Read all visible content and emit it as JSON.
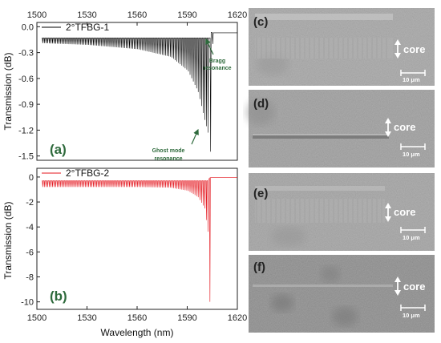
{
  "chart_data": [
    {
      "type": "line",
      "panel": "(a)",
      "x_axis": {
        "label": "",
        "ticks": [
          1500,
          1530,
          1560,
          1590,
          1620
        ],
        "range": [
          1500,
          1620
        ],
        "position": "top"
      },
      "y_axis": {
        "label": "Transmission (dB)",
        "ticks": [
          -0.0,
          -0.3,
          -0.6,
          -0.9,
          -1.2,
          -1.5
        ],
        "tick_labels": [
          "0.0",
          "-0.3",
          "-0.6",
          "-0.9",
          "-1.2",
          "-1.5"
        ],
        "range": [
          -1.55,
          0.05
        ]
      },
      "series": [
        {
          "name": "2°TFBG-1",
          "color": "#000000",
          "baseline": -0.13,
          "oscillation_start_nm": 1503,
          "resonance_spacing_nm": 0.98,
          "depth_points": [
            [
              1503,
              0.06
            ],
            [
              1530,
              0.08
            ],
            [
              1560,
              0.13
            ],
            [
              1580,
              0.22
            ],
            [
              1590,
              0.38
            ],
            [
              1596,
              0.62
            ],
            [
              1600,
              0.95
            ],
            [
              1602,
              1.1
            ]
          ],
          "ghost_mode_dip": {
            "x": 1604.0,
            "y": -1.45
          },
          "bragg_resonance": {
            "x": 1605.3,
            "y": -0.2
          },
          "flat_level_after": -0.07,
          "x_end": 1620
        }
      ],
      "legend": {
        "entries": [
          "2°TFBG-1"
        ],
        "placement": "top-left"
      },
      "annotations": [
        {
          "text": "Bragg resonance",
          "lines": [
            "Bragg",
            "resonance"
          ],
          "target": [
            1606.2,
            -0.1
          ]
        },
        {
          "text": "Ghost mode resonance",
          "lines": [
            "Ghost mode",
            "resonance"
          ],
          "target": [
            1603.2,
            -1.26
          ]
        }
      ]
    },
    {
      "type": "line",
      "panel": "(b)",
      "x_axis": {
        "label": "Wavelength (nm)",
        "ticks": [
          1500,
          1530,
          1560,
          1590,
          1620
        ],
        "range": [
          1500,
          1620
        ],
        "position": "bottom"
      },
      "y_axis": {
        "label": "Transmission (dB)",
        "ticks": [
          0,
          -2,
          -4,
          -6,
          -8,
          -10
        ],
        "tick_labels": [
          "0",
          "-2",
          "-4",
          "-6",
          "-8",
          "-10"
        ],
        "range": [
          -10.6,
          0.7
        ]
      },
      "series": [
        {
          "name": "2°TFBG-2",
          "color": "#e4161e",
          "baseline": -0.3,
          "oscillation_start_nm": 1503,
          "resonance_spacing_nm": 0.98,
          "depth_points": [
            [
              1503,
              0.5
            ],
            [
              1560,
              0.5
            ],
            [
              1580,
              0.55
            ],
            [
              1590,
              0.8
            ],
            [
              1596,
              1.3
            ],
            [
              1600,
              2.2
            ],
            [
              1602,
              4.1
            ]
          ],
          "bragg_resonance": {
            "x": 1603.6,
            "y": -10.0
          },
          "flat_level_after": -0.05,
          "x_end": 1620
        }
      ],
      "legend": {
        "entries": [
          "2°TFBG-2"
        ],
        "placement": "top-left"
      }
    }
  ],
  "micrographs": [
    {
      "id": "c",
      "label": "(c)",
      "core_label": "core",
      "scale_label": "10 μm"
    },
    {
      "id": "d",
      "label": "(d)",
      "core_label": "core",
      "scale_label": "10 μm"
    },
    {
      "id": "e",
      "label": "(e)",
      "core_label": "core",
      "scale_label": "10 μm"
    },
    {
      "id": "f",
      "label": "(f)",
      "core_label": "core",
      "scale_label": "10 μm"
    }
  ]
}
